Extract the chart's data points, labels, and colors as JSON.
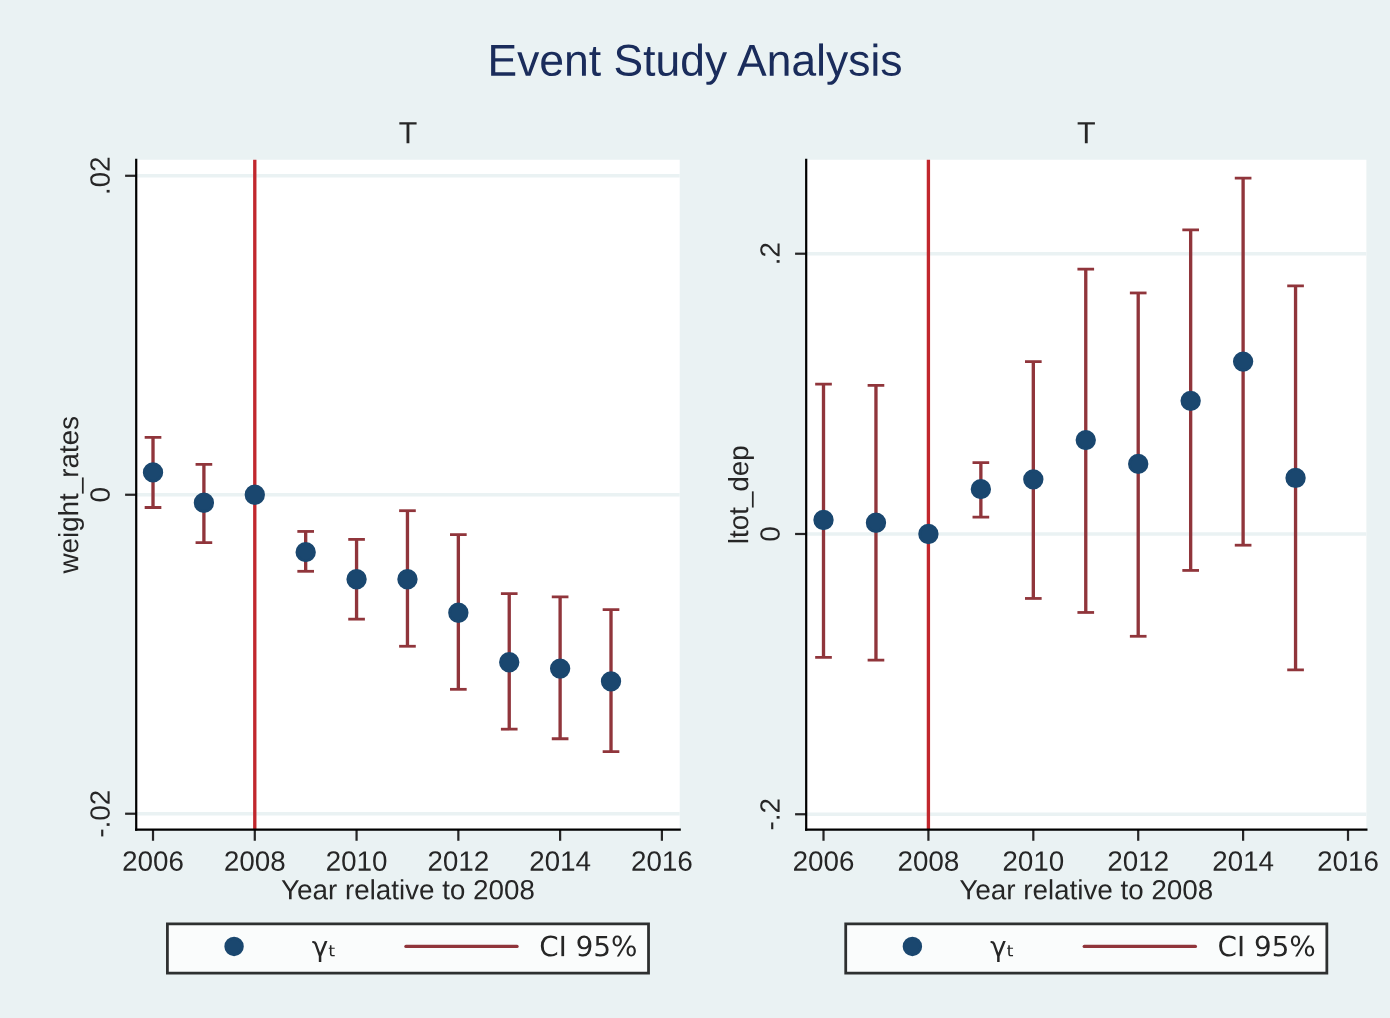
{
  "chart_data": [
    {
      "type": "scatter",
      "title": "Event Study Analysis",
      "subtitle": "T",
      "annotations": [
        "CI 95%"
      ],
      "xlabel": "Year relative to 2008",
      "ylabel": "weight_rates",
      "x": [
        2006,
        2007,
        2008,
        2009,
        2010,
        2011,
        2012,
        2013,
        2014,
        2015
      ],
      "series": [
        {
          "name": "γₜ",
          "color": "#1a476f",
          "values": [
            0.0014,
            -0.0005,
            0,
            -0.0036,
            -0.0053,
            -0.0053,
            -0.0074,
            -0.0105,
            -0.0109,
            -0.0117
          ],
          "errors": [
            [
              -0.0008,
              0.0036
            ],
            [
              -0.003,
              0.0019
            ],
            null,
            [
              -0.0048,
              -0.0023
            ],
            [
              -0.0078,
              -0.0028
            ],
            [
              -0.0095,
              -0.001
            ],
            [
              -0.0122,
              -0.0025
            ],
            [
              -0.0147,
              -0.0062
            ],
            [
              -0.0153,
              -0.0064
            ],
            [
              -0.0161,
              -0.0072
            ]
          ]
        }
      ],
      "ref_lines": [
        {
          "axis": "x",
          "value": 2008,
          "color": "#c1272d"
        }
      ],
      "xlim": [
        2005.67,
        2016.35
      ],
      "xticks": [
        2006,
        2008,
        2010,
        2012,
        2014,
        2016
      ],
      "ylim": [
        -0.021,
        0.021
      ],
      "yticks": [
        {
          "value": -0.02,
          "label": "-.02"
        },
        0,
        {
          "value": 0.02,
          "label": ".02"
        }
      ],
      "grid": "y",
      "legend": "bottom",
      "marker": "circle"
    },
    {
      "type": "scatter",
      "subtitle": "T",
      "annotations": [
        "CI 95%"
      ],
      "xlabel": "Year relative to 2008",
      "ylabel": "ltot_dep",
      "x": [
        2006,
        2007,
        2008,
        2009,
        2010,
        2011,
        2012,
        2013,
        2014,
        2015
      ],
      "series": [
        {
          "name": "γₜ",
          "color": "#1a476f",
          "values": [
            0.01,
            0.008,
            0,
            0.032,
            0.039,
            0.067,
            0.05,
            0.095,
            0.123,
            0.04
          ],
          "errors": [
            [
              -0.088,
              0.107
            ],
            [
              -0.09,
              0.106
            ],
            null,
            [
              0.012,
              0.051
            ],
            [
              -0.046,
              0.123
            ],
            [
              -0.056,
              0.189
            ],
            [
              -0.073,
              0.172
            ],
            [
              -0.026,
              0.217
            ],
            [
              -0.008,
              0.254
            ],
            [
              -0.097,
              0.177
            ]
          ]
        }
      ],
      "ref_lines": [
        {
          "axis": "x",
          "value": 2008,
          "color": "#c1272d"
        }
      ],
      "xlim": [
        2005.67,
        2016.35
      ],
      "xticks": [
        2006,
        2008,
        2010,
        2012,
        2014,
        2016
      ],
      "ylim": [
        -0.211,
        0.267
      ],
      "yticks": [
        {
          "value": -0.2,
          "label": "-.2"
        },
        0,
        {
          "value": 0.2,
          "label": ".2"
        }
      ],
      "grid": "y",
      "legend": "bottom",
      "marker": "circle"
    }
  ]
}
